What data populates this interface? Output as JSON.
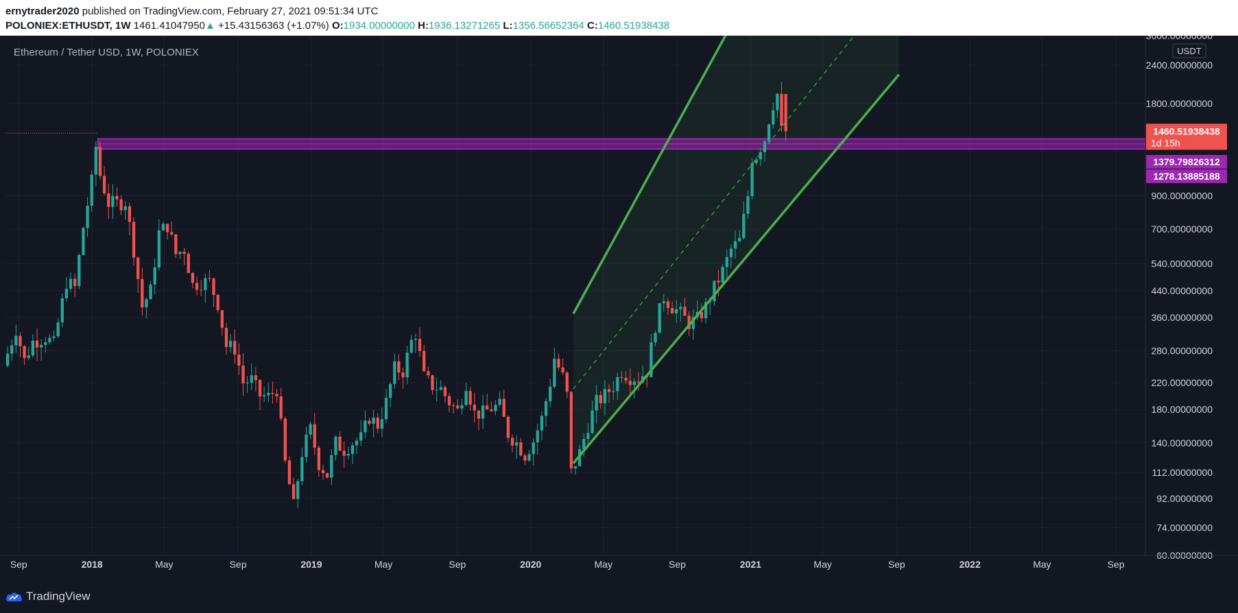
{
  "header": {
    "author": "ernytrader2020",
    "published_text": "published on TradingView.com, February 27, 2021 09:51:34 UTC",
    "symbol": "POLONIEX:ETHUSDT, 1W",
    "last": "1461.41047950",
    "change_arrow": "▲",
    "change": "+15.43156363 (+1.07%)",
    "o_label": "O:",
    "o_value": "1934.00000000",
    "h_label": "H:",
    "h_value": "1936.13271265",
    "l_label": "L:",
    "l_value": "1356.56652364",
    "c_label": "C:",
    "c_value": "1460.51938438"
  },
  "chart_data": {
    "type": "candlestick",
    "title": "Ethereum / Tether USD, 1W, POLONIEX",
    "currency": "USDT",
    "y_scale": "log",
    "ylim": [
      60,
      3000
    ],
    "y_ticks": [
      {
        "value": 3000,
        "label": "3000.00000000"
      },
      {
        "value": 2400,
        "label": "2400.00000000"
      },
      {
        "value": 1800,
        "label": "1800.00000000"
      },
      {
        "value": 900,
        "label": "900.00000000"
      },
      {
        "value": 700,
        "label": "700.00000000"
      },
      {
        "value": 540,
        "label": "540.00000000"
      },
      {
        "value": 440,
        "label": "440.00000000"
      },
      {
        "value": 360,
        "label": "360.00000000"
      },
      {
        "value": 280,
        "label": "280.00000000"
      },
      {
        "value": 220,
        "label": "220.00000000"
      },
      {
        "value": 180,
        "label": "180.00000000"
      },
      {
        "value": 140,
        "label": "140.00000000"
      },
      {
        "value": 112,
        "label": "112.00000000"
      },
      {
        "value": 92,
        "label": "92.00000000"
      },
      {
        "value": 74,
        "label": "74.00000000"
      },
      {
        "value": 60,
        "label": "60.00000000"
      }
    ],
    "x_range": [
      "2017-08-10",
      "2022-10-20"
    ],
    "x_ticks": [
      {
        "date": "2017-09-01",
        "label": "Sep",
        "bold": false
      },
      {
        "date": "2018-01-01",
        "label": "2018",
        "bold": true
      },
      {
        "date": "2018-05-01",
        "label": "May",
        "bold": false
      },
      {
        "date": "2018-09-01",
        "label": "Sep",
        "bold": false
      },
      {
        "date": "2019-01-01",
        "label": "2019",
        "bold": true
      },
      {
        "date": "2019-05-01",
        "label": "May",
        "bold": false
      },
      {
        "date": "2019-09-01",
        "label": "Sep",
        "bold": false
      },
      {
        "date": "2020-01-01",
        "label": "2020",
        "bold": true
      },
      {
        "date": "2020-05-01",
        "label": "May",
        "bold": false
      },
      {
        "date": "2020-09-01",
        "label": "Sep",
        "bold": false
      },
      {
        "date": "2021-01-01",
        "label": "2021",
        "bold": true
      },
      {
        "date": "2021-05-01",
        "label": "May",
        "bold": false
      },
      {
        "date": "2021-09-01",
        "label": "Sep",
        "bold": false
      },
      {
        "date": "2022-01-01",
        "label": "2022",
        "bold": true
      },
      {
        "date": "2022-05-01",
        "label": "May",
        "bold": false
      },
      {
        "date": "2022-09-01",
        "label": "Sep",
        "bold": false
      }
    ],
    "anchors": [
      [
        "2017-08-10",
        250
      ],
      [
        "2017-08-31",
        330
      ],
      [
        "2017-09-14",
        260
      ],
      [
        "2017-09-28",
        300
      ],
      [
        "2017-10-19",
        310
      ],
      [
        "2017-11-02",
        295
      ],
      [
        "2017-11-23",
        470
      ],
      [
        "2017-12-07",
        450
      ],
      [
        "2017-12-21",
        710
      ],
      [
        "2018-01-04",
        1000
      ],
      [
        "2018-01-11",
        1300
      ],
      [
        "2018-01-18",
        1050
      ],
      [
        "2018-02-01",
        850
      ],
      [
        "2018-02-15",
        850
      ],
      [
        "2018-03-01",
        860
      ],
      [
        "2018-03-15",
        600
      ],
      [
        "2018-03-29",
        390
      ],
      [
        "2018-04-12",
        440
      ],
      [
        "2018-04-26",
        680
      ],
      [
        "2018-05-10",
        720
      ],
      [
        "2018-05-24",
        580
      ],
      [
        "2018-06-07",
        600
      ],
      [
        "2018-06-21",
        460
      ],
      [
        "2018-07-05",
        470
      ],
      [
        "2018-07-19",
        470
      ],
      [
        "2018-08-02",
        400
      ],
      [
        "2018-08-16",
        290
      ],
      [
        "2018-08-30",
        285
      ],
      [
        "2018-09-13",
        220
      ],
      [
        "2018-09-27",
        225
      ],
      [
        "2018-10-11",
        200
      ],
      [
        "2018-10-25",
        198
      ],
      [
        "2018-11-08",
        210
      ],
      [
        "2018-11-22",
        120
      ],
      [
        "2018-12-06",
        87
      ],
      [
        "2018-12-20",
        130
      ],
      [
        "2019-01-03",
        155
      ],
      [
        "2019-01-17",
        120
      ],
      [
        "2019-01-31",
        110
      ],
      [
        "2019-02-14",
        140
      ],
      [
        "2019-02-28",
        133
      ],
      [
        "2019-03-14",
        140
      ],
      [
        "2019-03-28",
        145
      ],
      [
        "2019-04-11",
        170
      ],
      [
        "2019-04-25",
        160
      ],
      [
        "2019-05-09",
        190
      ],
      [
        "2019-05-23",
        245
      ],
      [
        "2019-06-06",
        240
      ],
      [
        "2019-06-20",
        300
      ],
      [
        "2019-06-27",
        320
      ],
      [
        "2019-07-11",
        230
      ],
      [
        "2019-07-25",
        215
      ],
      [
        "2019-08-08",
        210
      ],
      [
        "2019-08-22",
        190
      ],
      [
        "2019-09-05",
        178
      ],
      [
        "2019-09-19",
        220
      ],
      [
        "2019-10-03",
        175
      ],
      [
        "2019-10-17",
        175
      ],
      [
        "2019-10-31",
        182
      ],
      [
        "2019-11-14",
        185
      ],
      [
        "2019-11-28",
        150
      ],
      [
        "2019-12-12",
        140
      ],
      [
        "2019-12-26",
        128
      ],
      [
        "2020-01-09",
        142
      ],
      [
        "2020-01-23",
        168
      ],
      [
        "2020-02-06",
        220
      ],
      [
        "2020-02-13",
        265
      ],
      [
        "2020-02-27",
        230
      ],
      [
        "2020-03-05",
        200
      ],
      [
        "2020-03-12",
        112
      ],
      [
        "2020-03-26",
        130
      ],
      [
        "2020-04-09",
        160
      ],
      [
        "2020-04-23",
        190
      ],
      [
        "2020-05-07",
        200
      ],
      [
        "2020-05-21",
        215
      ],
      [
        "2020-06-04",
        240
      ],
      [
        "2020-06-18",
        230
      ],
      [
        "2020-07-02",
        228
      ],
      [
        "2020-07-16",
        240
      ],
      [
        "2020-07-30",
        340
      ],
      [
        "2020-08-13",
        420
      ],
      [
        "2020-08-27",
        390
      ],
      [
        "2020-09-10",
        370
      ],
      [
        "2020-09-24",
        345
      ],
      [
        "2020-10-08",
        355
      ],
      [
        "2020-10-22",
        390
      ],
      [
        "2020-11-05",
        450
      ],
      [
        "2020-11-19",
        510
      ],
      [
        "2020-12-03",
        600
      ],
      [
        "2020-12-17",
        640
      ],
      [
        "2020-12-31",
        900
      ],
      [
        "2021-01-07",
        1200
      ],
      [
        "2021-01-14",
        1220
      ],
      [
        "2021-01-21",
        1300
      ],
      [
        "2021-01-28",
        1380
      ],
      [
        "2021-02-04",
        1600
      ],
      [
        "2021-02-11",
        1800
      ],
      [
        "2021-02-18",
        1934
      ],
      [
        "2021-02-25",
        1460
      ]
    ],
    "last_candle": {
      "date": "2021-02-25",
      "open": 1934.0,
      "high": 1936.13271265,
      "low": 1356.56652364,
      "close": 1460.51938438
    },
    "price_labels": [
      {
        "label": "1460.51938438",
        "sub": "1d 15h",
        "value": 1460.51938438,
        "color": "#ef5350"
      },
      {
        "label": "1379.79826312",
        "value": 1379.79826312,
        "color": "#9c27b0"
      },
      {
        "label": "1278.13885188",
        "value": 1278.13885188,
        "color": "#9c27b0"
      }
    ],
    "support_zone": {
      "top": 1379.79826312,
      "bottom": 1278.13885188,
      "start": "2018-01-11",
      "color": "#9c27b0"
    },
    "previous_high_line": {
      "value": 1440,
      "start": "2017-08-10",
      "end": "2018-01-11",
      "color": "#ef5350"
    },
    "channel": {
      "upper": [
        [
          "2020-03-12",
          370
        ],
        [
          "2020-11-26",
          3150
        ]
      ],
      "lower": [
        [
          "2020-03-12",
          120
        ],
        [
          "2021-09-05",
          2240
        ]
      ],
      "mid": [
        [
          "2020-03-12",
          210
        ],
        [
          "2021-07-01",
          3150
        ]
      ],
      "color": "#4caf50"
    },
    "colors": {
      "up": "#26a69a",
      "down": "#ef5350",
      "background": "#131722",
      "grid": "#1e222d"
    }
  },
  "footer": {
    "brand": "TradingView"
  }
}
